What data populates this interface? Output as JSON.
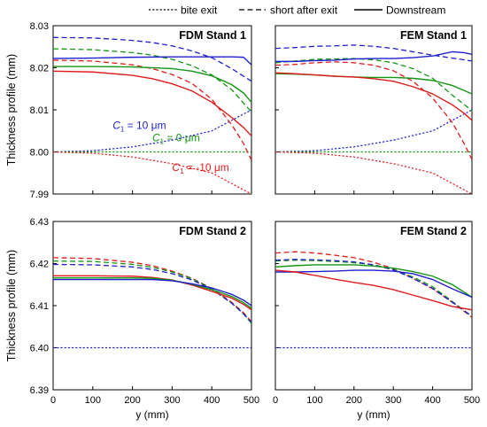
{
  "legend": {
    "position": "top",
    "items": [
      {
        "label": "bite exit",
        "style": "dotted"
      },
      {
        "label": "short after exit",
        "style": "dashed"
      },
      {
        "label": "Downstream",
        "style": "solid"
      }
    ]
  },
  "colors": {
    "c10": "#1f1fd0",
    "c0": "#139413",
    "cm10": "#e01b1b"
  },
  "chart_data": [
    {
      "type": "line",
      "title": "FDM Stand 1",
      "ylabel": "Thickness profile (mm)",
      "xlabel": "",
      "xlim": [
        0,
        500
      ],
      "ylim": [
        7.99,
        8.03
      ],
      "xticks": [
        "0",
        "100",
        "200",
        "300",
        "400",
        "500"
      ],
      "yticks": [
        "7.99",
        "8.00",
        "8.01",
        "8.02",
        "8.03"
      ],
      "xtick_labels_visible": false,
      "ytick_labels_visible": true,
      "annotations": [
        {
          "prefix": "C",
          "sub": "1",
          "suffix": " = 10 μm",
          "x": 150,
          "y": 8.0055,
          "color": "#1f1fd0"
        },
        {
          "prefix": "C",
          "sub": "1",
          "suffix": " = 0 μm",
          "x": 250,
          "y": 8.0025,
          "color": "#139413"
        },
        {
          "prefix": "C",
          "sub": "1",
          "suffix": " = -10 μm",
          "x": 300,
          "y": 7.9955,
          "color": "#e01b1b"
        }
      ],
      "series": [
        {
          "style": "dotted",
          "color": "#1f1fd0",
          "x": [
            0,
            100,
            200,
            300,
            400,
            500
          ],
          "y": [
            8.0,
            8.0003,
            8.0012,
            8.0028,
            8.005,
            8.01
          ]
        },
        {
          "style": "dotted",
          "color": "#139413",
          "x": [
            0,
            500
          ],
          "y": [
            8.0,
            8.0
          ]
        },
        {
          "style": "dotted",
          "color": "#e01b1b",
          "x": [
            0,
            100,
            200,
            300,
            400,
            500
          ],
          "y": [
            8.0,
            7.9997,
            7.9988,
            7.9972,
            7.995,
            7.99
          ]
        },
        {
          "style": "dashed",
          "color": "#1f1fd0",
          "x": [
            0,
            100,
            200,
            250,
            300,
            350,
            400,
            450,
            500
          ],
          "y": [
            8.0272,
            8.0271,
            8.0265,
            8.026,
            8.0252,
            8.024,
            8.0224,
            8.0198,
            8.0168
          ]
        },
        {
          "style": "dashed",
          "color": "#139413",
          "x": [
            0,
            100,
            200,
            250,
            300,
            350,
            400,
            450,
            500
          ],
          "y": [
            8.0245,
            8.0243,
            8.0236,
            8.023,
            8.022,
            8.0205,
            8.0183,
            8.0148,
            8.0095
          ]
        },
        {
          "style": "dashed",
          "color": "#e01b1b",
          "x": [
            0,
            100,
            200,
            250,
            300,
            350,
            400,
            450,
            480,
            500
          ],
          "y": [
            8.0218,
            8.0216,
            8.0207,
            8.0198,
            8.0184,
            8.0163,
            8.0125,
            8.0065,
            8.002,
            7.998
          ]
        },
        {
          "style": "solid",
          "color": "#1f1fd0",
          "x": [
            0,
            100,
            200,
            300,
            400,
            450,
            480,
            500
          ],
          "y": [
            8.0222,
            8.0223,
            8.0225,
            8.0226,
            8.0226,
            8.0226,
            8.0225,
            8.0207
          ]
        },
        {
          "style": "solid",
          "color": "#139413",
          "x": [
            0,
            100,
            200,
            300,
            350,
            400,
            450,
            480,
            500
          ],
          "y": [
            8.0203,
            8.0203,
            8.0202,
            8.0198,
            8.0192,
            8.0181,
            8.016,
            8.014,
            8.0118
          ]
        },
        {
          "style": "solid",
          "color": "#e01b1b",
          "x": [
            0,
            100,
            200,
            250,
            300,
            350,
            400,
            450,
            480,
            500
          ],
          "y": [
            8.0192,
            8.019,
            8.0182,
            8.0174,
            8.0162,
            8.0145,
            8.0118,
            8.0082,
            8.0058,
            8.0038
          ]
        }
      ]
    },
    {
      "type": "line",
      "title": "FEM Stand 1",
      "ylabel": "",
      "xlabel": "",
      "xlim": [
        0,
        500
      ],
      "ylim": [
        7.99,
        8.03
      ],
      "xticks": [
        "0",
        "100",
        "200",
        "300",
        "400",
        "500"
      ],
      "yticks": [
        "7.99",
        "8.00",
        "8.01",
        "8.02",
        "8.03"
      ],
      "xtick_labels_visible": false,
      "ytick_labels_visible": false,
      "annotations": [],
      "series": [
        {
          "style": "dotted",
          "color": "#1f1fd0",
          "x": [
            0,
            100,
            200,
            300,
            400,
            500
          ],
          "y": [
            8.0,
            8.0003,
            8.0012,
            8.0028,
            8.005,
            8.01
          ]
        },
        {
          "style": "dotted",
          "color": "#139413",
          "x": [
            0,
            500
          ],
          "y": [
            8.0,
            8.0
          ]
        },
        {
          "style": "dotted",
          "color": "#e01b1b",
          "x": [
            0,
            100,
            200,
            300,
            400,
            500
          ],
          "y": [
            8.0,
            7.9997,
            7.9988,
            7.9972,
            7.995,
            7.99
          ]
        },
        {
          "style": "dashed",
          "color": "#1f1fd0",
          "x": [
            0,
            50,
            100,
            150,
            200,
            250,
            300,
            350,
            400,
            450,
            500
          ],
          "y": [
            8.0246,
            8.0248,
            8.0251,
            8.0252,
            8.0254,
            8.0251,
            8.0246,
            8.0238,
            8.023,
            8.0223,
            8.0216
          ]
        },
        {
          "style": "dashed",
          "color": "#139413",
          "x": [
            0,
            50,
            100,
            150,
            200,
            250,
            300,
            350,
            400,
            450,
            500
          ],
          "y": [
            8.0212,
            8.0216,
            8.022,
            8.0221,
            8.0222,
            8.0219,
            8.0212,
            8.0198,
            8.0175,
            8.0135,
            8.0098
          ]
        },
        {
          "style": "dashed",
          "color": "#e01b1b",
          "x": [
            0,
            50,
            100,
            150,
            200,
            250,
            300,
            350,
            400,
            450,
            480,
            500
          ],
          "y": [
            8.0206,
            8.0208,
            8.0212,
            8.0214,
            8.0212,
            8.0206,
            8.0193,
            8.0168,
            8.0128,
            8.007,
            8.002,
            7.9982
          ]
        },
        {
          "style": "solid",
          "color": "#1f1fd0",
          "x": [
            0,
            50,
            100,
            150,
            200,
            250,
            300,
            350,
            400,
            450,
            480,
            500
          ],
          "y": [
            8.0215,
            8.0215,
            8.0217,
            8.0218,
            8.0221,
            8.0222,
            8.0222,
            8.0224,
            8.0228,
            8.0238,
            8.0236,
            8.0232
          ]
        },
        {
          "style": "solid",
          "color": "#139413",
          "x": [
            0,
            50,
            100,
            150,
            200,
            250,
            300,
            350,
            400,
            450,
            480,
            500
          ],
          "y": [
            8.0186,
            8.0185,
            8.0183,
            8.018,
            8.0178,
            8.0177,
            8.0177,
            8.0175,
            8.017,
            8.0158,
            8.0146,
            8.0138
          ]
        },
        {
          "style": "solid",
          "color": "#e01b1b",
          "x": [
            0,
            50,
            100,
            150,
            200,
            250,
            300,
            350,
            400,
            450,
            480,
            500
          ],
          "y": [
            8.0188,
            8.0186,
            8.0183,
            8.018,
            8.0178,
            8.0174,
            8.0168,
            8.0155,
            8.0138,
            8.0112,
            8.0092,
            8.0075
          ]
        }
      ]
    },
    {
      "type": "line",
      "title": "FDM Stand 2",
      "ylabel": "Thickness profile (mm)",
      "xlabel": "y (mm)",
      "xlim": [
        0,
        500
      ],
      "ylim": [
        6.39,
        6.43
      ],
      "xticks": [
        "0",
        "100",
        "200",
        "300",
        "400",
        "500"
      ],
      "yticks": [
        "6.39",
        "6.40",
        "6.41",
        "6.42",
        "6.43"
      ],
      "xtick_labels_visible": true,
      "ytick_labels_visible": true,
      "annotations": [],
      "series": [
        {
          "style": "dotted",
          "color": "#1f1fd0",
          "x": [
            0,
            500
          ],
          "y": [
            6.4,
            6.4
          ]
        },
        {
          "style": "dashed",
          "color": "#e01b1b",
          "x": [
            0,
            100,
            200,
            250,
            300,
            350,
            400,
            450,
            480,
            500
          ],
          "y": [
            6.4214,
            6.4212,
            6.4203,
            6.4195,
            6.4182,
            6.4165,
            6.4141,
            6.4108,
            6.4083,
            6.4062
          ]
        },
        {
          "style": "dashed",
          "color": "#139413",
          "x": [
            0,
            100,
            200,
            250,
            300,
            350,
            400,
            450,
            480,
            500
          ],
          "y": [
            6.4206,
            6.4205,
            6.4198,
            6.4191,
            6.418,
            6.4164,
            6.414,
            6.4106,
            6.408,
            6.4058
          ]
        },
        {
          "style": "dashed",
          "color": "#1f1fd0",
          "x": [
            0,
            100,
            200,
            250,
            300,
            350,
            400,
            450,
            480,
            500
          ],
          "y": [
            6.4198,
            6.4197,
            6.4192,
            6.4186,
            6.4176,
            6.4161,
            6.4139,
            6.4106,
            6.4081,
            6.406
          ]
        },
        {
          "style": "solid",
          "color": "#e01b1b",
          "x": [
            0,
            100,
            200,
            250,
            300,
            350,
            400,
            450,
            480,
            500
          ],
          "y": [
            6.4171,
            6.4171,
            6.417,
            6.4167,
            6.4161,
            6.4149,
            6.4134,
            6.4118,
            6.4103,
            6.409
          ]
        },
        {
          "style": "solid",
          "color": "#139413",
          "x": [
            0,
            100,
            200,
            250,
            300,
            350,
            400,
            450,
            480,
            500
          ],
          "y": [
            6.4166,
            6.4166,
            6.4166,
            6.4165,
            6.416,
            6.4151,
            6.4138,
            6.4122,
            6.4107,
            6.4094
          ]
        },
        {
          "style": "solid",
          "color": "#1f1fd0",
          "x": [
            0,
            100,
            200,
            250,
            300,
            350,
            400,
            450,
            480,
            500
          ],
          "y": [
            6.4162,
            6.4162,
            6.4162,
            6.4162,
            6.4159,
            6.4152,
            6.4142,
            6.4127,
            6.4113,
            6.41
          ]
        }
      ]
    },
    {
      "type": "line",
      "title": "FEM Stand 2",
      "ylabel": "",
      "xlabel": "y (mm)",
      "xlim": [
        0,
        500
      ],
      "ylim": [
        6.39,
        6.43
      ],
      "xticks": [
        "0",
        "100",
        "200",
        "300",
        "400",
        "500"
      ],
      "yticks": [
        "6.39",
        "6.40",
        "6.41",
        "6.42",
        "6.43"
      ],
      "xtick_labels_visible": true,
      "ytick_labels_visible": false,
      "annotations": [],
      "series": [
        {
          "style": "dotted",
          "color": "#1f1fd0",
          "x": [
            0,
            500
          ],
          "y": [
            6.4,
            6.4
          ]
        },
        {
          "style": "dashed",
          "color": "#e01b1b",
          "x": [
            0,
            50,
            100,
            150,
            200,
            250,
            300,
            350,
            400,
            450,
            500
          ],
          "y": [
            6.4225,
            6.4228,
            6.4225,
            6.422,
            6.4214,
            6.4203,
            6.4188,
            6.4165,
            6.414,
            6.4108,
            6.4072
          ]
        },
        {
          "style": "dashed",
          "color": "#139413",
          "x": [
            0,
            50,
            100,
            150,
            200,
            250,
            300,
            350,
            400,
            450,
            500
          ],
          "y": [
            6.4206,
            6.4208,
            6.4207,
            6.4205,
            6.4202,
            6.4197,
            6.4186,
            6.4168,
            6.4145,
            6.411,
            6.4074
          ]
        },
        {
          "style": "dashed",
          "color": "#1f1fd0",
          "x": [
            0,
            50,
            100,
            150,
            200,
            250,
            300,
            350,
            400,
            450,
            500
          ],
          "y": [
            6.4208,
            6.421,
            6.4209,
            6.4207,
            6.4204,
            6.4197,
            6.4185,
            6.4165,
            6.4141,
            6.4108,
            6.4075
          ]
        },
        {
          "style": "solid",
          "color": "#139413",
          "x": [
            0,
            50,
            100,
            150,
            200,
            250,
            300,
            350,
            400,
            450,
            500
          ],
          "y": [
            6.4192,
            6.4195,
            6.4197,
            6.4197,
            6.4197,
            6.4194,
            6.4189,
            6.4181,
            6.417,
            6.415,
            6.412
          ]
        },
        {
          "style": "solid",
          "color": "#1f1fd0",
          "x": [
            0,
            50,
            100,
            150,
            200,
            250,
            300,
            350,
            400,
            450,
            500
          ],
          "y": [
            6.418,
            6.418,
            6.4181,
            6.4182,
            6.4184,
            6.4184,
            6.4182,
            6.4176,
            6.4162,
            6.414,
            6.412
          ]
        },
        {
          "style": "solid",
          "color": "#e01b1b",
          "x": [
            0,
            50,
            100,
            150,
            200,
            250,
            300,
            350,
            400,
            450,
            500
          ],
          "y": [
            6.4184,
            6.418,
            6.4172,
            6.4163,
            6.4155,
            6.4148,
            6.4138,
            6.4125,
            6.4112,
            6.4098,
            6.409
          ]
        }
      ]
    }
  ]
}
